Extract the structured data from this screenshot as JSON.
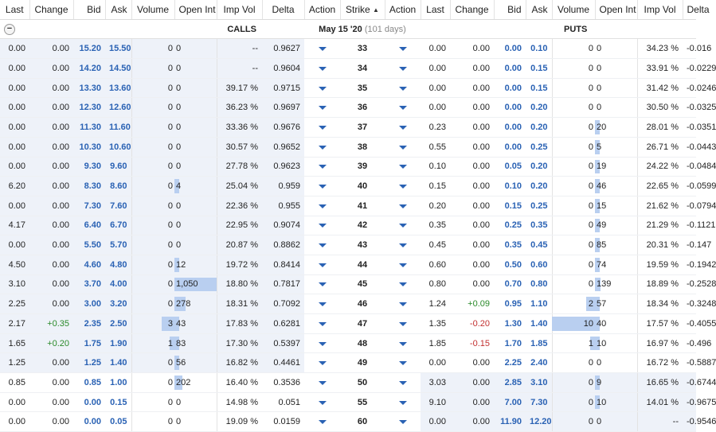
{
  "header": {
    "calls_cols": [
      "Last",
      "Change",
      "Bid",
      "Ask",
      "Volume",
      "Open Int",
      "Imp Vol",
      "Delta",
      "Action"
    ],
    "strike_col": "Strike",
    "sort_icon": "sort-up-icon",
    "puts_cols": [
      "Action",
      "Last",
      "Change",
      "Bid",
      "Ask",
      "Volume",
      "Open Int",
      "Imp Vol",
      "Delta"
    ]
  },
  "expiry": {
    "collapse_glyph": "−",
    "calls_label": "CALLS",
    "date": "May 15 '20",
    "days": "(101 days)",
    "puts_label": "PUTS"
  },
  "rows": [
    {
      "strike": "33",
      "c_last": "0.00",
      "c_change": "0.00",
      "c_bid": "15.20",
      "c_ask": "15.50",
      "c_vol": "0",
      "c_oi": "0",
      "c_iv": "--",
      "c_delta": "0.9627",
      "p_last": "0.00",
      "p_change": "0.00",
      "p_bid": "0.00",
      "p_ask": "0.10",
      "p_vol": "0",
      "p_oi": "0",
      "p_iv": "34.23 %",
      "p_delta": "-0.016"
    },
    {
      "strike": "34",
      "c_last": "0.00",
      "c_change": "0.00",
      "c_bid": "14.20",
      "c_ask": "14.50",
      "c_vol": "0",
      "c_oi": "0",
      "c_iv": "--",
      "c_delta": "0.9604",
      "p_last": "0.00",
      "p_change": "0.00",
      "p_bid": "0.00",
      "p_ask": "0.15",
      "p_vol": "0",
      "p_oi": "0",
      "p_iv": "33.91 %",
      "p_delta": "-0.0229"
    },
    {
      "strike": "35",
      "c_last": "0.00",
      "c_change": "0.00",
      "c_bid": "13.30",
      "c_ask": "13.60",
      "c_vol": "0",
      "c_oi": "0",
      "c_iv": "39.17 %",
      "c_delta": "0.9715",
      "p_last": "0.00",
      "p_change": "0.00",
      "p_bid": "0.00",
      "p_ask": "0.15",
      "p_vol": "0",
      "p_oi": "0",
      "p_iv": "31.42 %",
      "p_delta": "-0.0246"
    },
    {
      "strike": "36",
      "c_last": "0.00",
      "c_change": "0.00",
      "c_bid": "12.30",
      "c_ask": "12.60",
      "c_vol": "0",
      "c_oi": "0",
      "c_iv": "36.23 %",
      "c_delta": "0.9697",
      "p_last": "0.00",
      "p_change": "0.00",
      "p_bid": "0.00",
      "p_ask": "0.20",
      "p_vol": "0",
      "p_oi": "0",
      "p_iv": "30.50 %",
      "p_delta": "-0.0325"
    },
    {
      "strike": "37",
      "c_last": "0.00",
      "c_change": "0.00",
      "c_bid": "11.30",
      "c_ask": "11.60",
      "c_vol": "0",
      "c_oi": "0",
      "c_iv": "33.36 %",
      "c_delta": "0.9676",
      "p_last": "0.23",
      "p_change": "0.00",
      "p_bid": "0.00",
      "p_ask": "0.20",
      "p_vol": "0",
      "p_oi": "20",
      "p_iv": "28.01 %",
      "p_delta": "-0.0351"
    },
    {
      "strike": "38",
      "c_last": "0.00",
      "c_change": "0.00",
      "c_bid": "10.30",
      "c_ask": "10.60",
      "c_vol": "0",
      "c_oi": "0",
      "c_iv": "30.57 %",
      "c_delta": "0.9652",
      "p_last": "0.55",
      "p_change": "0.00",
      "p_bid": "0.00",
      "p_ask": "0.25",
      "p_vol": "0",
      "p_oi": "5",
      "p_iv": "26.71 %",
      "p_delta": "-0.0443"
    },
    {
      "strike": "39",
      "c_last": "0.00",
      "c_change": "0.00",
      "c_bid": "9.30",
      "c_ask": "9.60",
      "c_vol": "0",
      "c_oi": "0",
      "c_iv": "27.78 %",
      "c_delta": "0.9623",
      "p_last": "0.10",
      "p_change": "0.00",
      "p_bid": "0.05",
      "p_ask": "0.20",
      "p_vol": "0",
      "p_oi": "19",
      "p_iv": "24.22 %",
      "p_delta": "-0.0484"
    },
    {
      "strike": "40",
      "c_last": "6.20",
      "c_change": "0.00",
      "c_bid": "8.30",
      "c_ask": "8.60",
      "c_vol": "0",
      "c_oi": "4",
      "c_iv": "25.04 %",
      "c_delta": "0.959",
      "p_last": "0.15",
      "p_change": "0.00",
      "p_bid": "0.10",
      "p_ask": "0.20",
      "p_vol": "0",
      "p_oi": "46",
      "p_iv": "22.65 %",
      "p_delta": "-0.0599"
    },
    {
      "strike": "41",
      "c_last": "0.00",
      "c_change": "0.00",
      "c_bid": "7.30",
      "c_ask": "7.60",
      "c_vol": "0",
      "c_oi": "0",
      "c_iv": "22.36 %",
      "c_delta": "0.955",
      "p_last": "0.20",
      "p_change": "0.00",
      "p_bid": "0.15",
      "p_ask": "0.25",
      "p_vol": "0",
      "p_oi": "15",
      "p_iv": "21.62 %",
      "p_delta": "-0.0794"
    },
    {
      "strike": "42",
      "c_last": "4.17",
      "c_change": "0.00",
      "c_bid": "6.40",
      "c_ask": "6.70",
      "c_vol": "0",
      "c_oi": "0",
      "c_iv": "22.95 %",
      "c_delta": "0.9074",
      "p_last": "0.35",
      "p_change": "0.00",
      "p_bid": "0.25",
      "p_ask": "0.35",
      "p_vol": "0",
      "p_oi": "49",
      "p_iv": "21.29 %",
      "p_delta": "-0.1121"
    },
    {
      "strike": "43",
      "c_last": "0.00",
      "c_change": "0.00",
      "c_bid": "5.50",
      "c_ask": "5.70",
      "c_vol": "0",
      "c_oi": "0",
      "c_iv": "20.87 %",
      "c_delta": "0.8862",
      "p_last": "0.45",
      "p_change": "0.00",
      "p_bid": "0.35",
      "p_ask": "0.45",
      "p_vol": "0",
      "p_oi": "85",
      "p_iv": "20.31 %",
      "p_delta": "-0.147"
    },
    {
      "strike": "44",
      "c_last": "4.50",
      "c_change": "0.00",
      "c_bid": "4.60",
      "c_ask": "4.80",
      "c_vol": "0",
      "c_oi": "12",
      "c_iv": "19.72 %",
      "c_delta": "0.8414",
      "p_last": "0.60",
      "p_change": "0.00",
      "p_bid": "0.50",
      "p_ask": "0.60",
      "p_vol": "0",
      "p_oi": "74",
      "p_iv": "19.59 %",
      "p_delta": "-0.1942"
    },
    {
      "strike": "45",
      "c_last": "3.10",
      "c_change": "0.00",
      "c_bid": "3.70",
      "c_ask": "4.00",
      "c_vol": "0",
      "c_oi": "1,050",
      "c_iv": "18.80 %",
      "c_delta": "0.7817",
      "p_last": "0.80",
      "p_change": "0.00",
      "p_bid": "0.70",
      "p_ask": "0.80",
      "p_vol": "0",
      "p_oi": "139",
      "p_iv": "18.89 %",
      "p_delta": "-0.2528"
    },
    {
      "strike": "46",
      "c_last": "2.25",
      "c_change": "0.00",
      "c_bid": "3.00",
      "c_ask": "3.20",
      "c_vol": "0",
      "c_oi": "278",
      "c_iv": "18.31 %",
      "c_delta": "0.7092",
      "p_last": "1.24",
      "p_change": "+0.09",
      "p_bid": "0.95",
      "p_ask": "1.10",
      "p_vol": "2",
      "p_oi": "57",
      "p_iv": "18.34 %",
      "p_delta": "-0.3248"
    },
    {
      "strike": "47",
      "c_last": "2.17",
      "c_change": "+0.35",
      "c_bid": "2.35",
      "c_ask": "2.50",
      "c_vol": "3",
      "c_oi": "43",
      "c_iv": "17.83 %",
      "c_delta": "0.6281",
      "p_last": "1.35",
      "p_change": "-0.20",
      "p_bid": "1.30",
      "p_ask": "1.40",
      "p_vol": "10",
      "p_oi": "40",
      "p_iv": "17.57 %",
      "p_delta": "-0.4055"
    },
    {
      "strike": "48",
      "c_last": "1.65",
      "c_change": "+0.20",
      "c_bid": "1.75",
      "c_ask": "1.90",
      "c_vol": "1",
      "c_oi": "83",
      "c_iv": "17.30 %",
      "c_delta": "0.5397",
      "p_last": "1.85",
      "p_change": "-0.15",
      "p_bid": "1.70",
      "p_ask": "1.85",
      "p_vol": "1",
      "p_oi": "10",
      "p_iv": "16.97 %",
      "p_delta": "-0.496"
    },
    {
      "strike": "49",
      "c_last": "1.25",
      "c_change": "0.00",
      "c_bid": "1.25",
      "c_ask": "1.40",
      "c_vol": "0",
      "c_oi": "56",
      "c_iv": "16.82 %",
      "c_delta": "0.4461",
      "p_last": "0.00",
      "p_change": "0.00",
      "p_bid": "2.25",
      "p_ask": "2.40",
      "p_vol": "0",
      "p_oi": "0",
      "p_iv": "16.72 %",
      "p_delta": "-0.5887"
    },
    {
      "strike": "50",
      "c_last": "0.85",
      "c_change": "0.00",
      "c_bid": "0.85",
      "c_ask": "1.00",
      "c_vol": "0",
      "c_oi": "202",
      "c_iv": "16.40 %",
      "c_delta": "0.3536",
      "p_last": "3.03",
      "p_change": "0.00",
      "p_bid": "2.85",
      "p_ask": "3.10",
      "p_vol": "0",
      "p_oi": "9",
      "p_iv": "16.65 %",
      "p_delta": "-0.6744"
    },
    {
      "strike": "55",
      "c_last": "0.00",
      "c_change": "0.00",
      "c_bid": "0.00",
      "c_ask": "0.15",
      "c_vol": "0",
      "c_oi": "0",
      "c_iv": "14.98 %",
      "c_delta": "0.051",
      "p_last": "9.10",
      "p_change": "0.00",
      "p_bid": "7.00",
      "p_ask": "7.30",
      "p_vol": "0",
      "p_oi": "10",
      "p_iv": "14.01 %",
      "p_delta": "-0.9675"
    },
    {
      "strike": "60",
      "c_last": "0.00",
      "c_change": "0.00",
      "c_bid": "0.00",
      "c_ask": "0.05",
      "c_vol": "0",
      "c_oi": "0",
      "c_iv": "19.09 %",
      "c_delta": "0.0159",
      "p_last": "0.00",
      "p_change": "0.00",
      "p_bid": "11.90",
      "p_ask": "12.20",
      "p_vol": "0",
      "p_oi": "0",
      "p_iv": "--",
      "p_delta": "-0.9546"
    }
  ],
  "itm": {
    "calls_through_row": 16,
    "puts_from_row": 17
  },
  "colors": {
    "itm_bg": "#eef2f9",
    "bar": "#b9cff0",
    "bid_ask": "#2a62b4",
    "positive": "#2a8a2a",
    "negative": "#c23030"
  },
  "row_icon": "chevron-down-icon"
}
